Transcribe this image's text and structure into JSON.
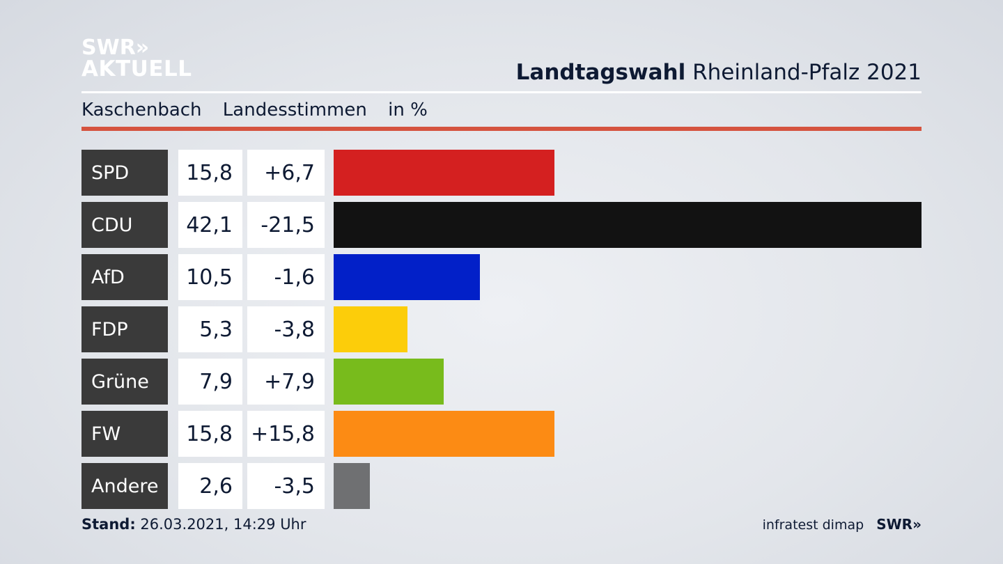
{
  "logo": {
    "line1": "SWR»",
    "line2": "AKTUELL"
  },
  "header": {
    "title_bold": "Landtagswahl",
    "title_rest": "Rheinland-Pfalz 2021"
  },
  "subheader": {
    "place": "Kaschenbach",
    "vote_type": "Landesstimmen",
    "unit": "in %"
  },
  "footer": {
    "stand_label": "Stand:",
    "stand_value": "26.03.2021, 14:29 Uhr",
    "source": "infratest dimap",
    "brand": "SWR»"
  },
  "colors": {
    "accent_rule": "#d5533f",
    "label_bg": "#3a3a3a"
  },
  "chart_data": {
    "type": "bar",
    "categories": [
      "SPD",
      "CDU",
      "AfD",
      "FDP",
      "Grüne",
      "FW",
      "Andere"
    ],
    "values": [
      15.8,
      42.1,
      10.5,
      5.3,
      7.9,
      15.8,
      2.6
    ],
    "value_labels": [
      "15,8",
      "42,1",
      "10,5",
      "5,3",
      "7,9",
      "15,8",
      "2,6"
    ],
    "changes": [
      6.7,
      -21.5,
      -1.6,
      -3.8,
      7.9,
      15.8,
      -3.5
    ],
    "change_labels": [
      "+6,7",
      "-21,5",
      "-1,6",
      "-3,8",
      "+7,9",
      "+15,8",
      "-3,5"
    ],
    "colors": [
      "#d42020",
      "#121212",
      "#0220c8",
      "#fccd0a",
      "#78bb1c",
      "#fc8b14",
      "#6f7072"
    ],
    "ylim": [
      0,
      42.1
    ]
  }
}
